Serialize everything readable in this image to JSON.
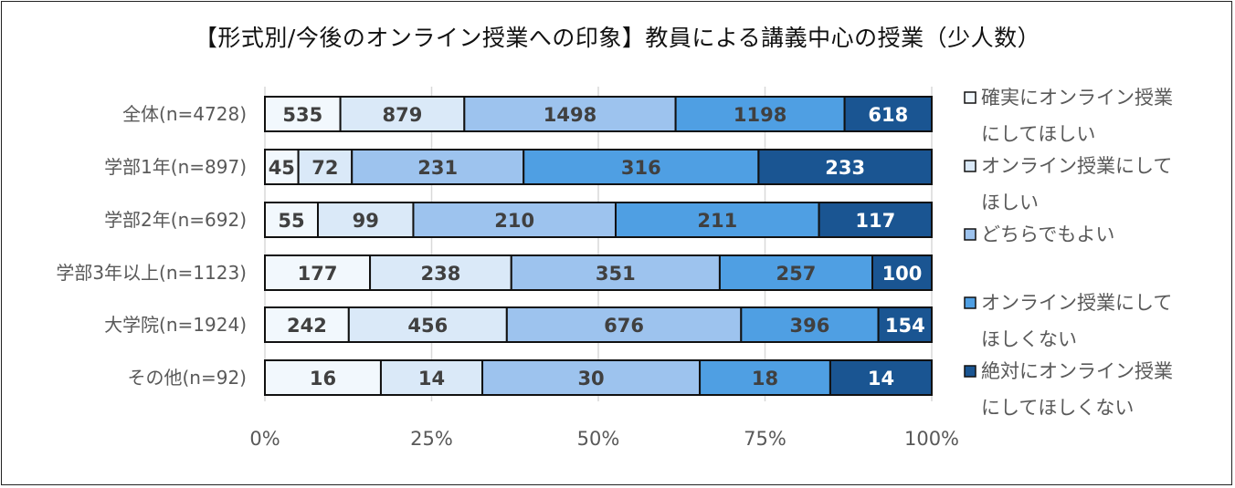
{
  "chart_data": {
    "type": "bar",
    "orientation": "horizontal",
    "stacked": "percent",
    "title": "【形式別/今後のオンライン授業への印象】教員による講義中心の授業（少人数）",
    "categories": [
      "全体(n=4728)",
      "学部1年(n=897)",
      "学部2年(n=692)",
      "学部3年以上(n=1123)",
      "大学院(n=1924)",
      "その他(n=92)"
    ],
    "series": [
      {
        "name": "確実にオンライン授業にしてほしい",
        "legend_lines": [
          "確実にオンライン授業",
          "にしてほしい"
        ],
        "color": "#F2F8FD",
        "values": [
          535,
          45,
          55,
          177,
          242,
          16
        ]
      },
      {
        "name": "オンライン授業にしてほしい",
        "legend_lines": [
          "オンライン授業にして",
          "ほしい"
        ],
        "color": "#DAE9F8",
        "values": [
          879,
          72,
          99,
          238,
          456,
          14
        ]
      },
      {
        "name": "どちらでもよい",
        "legend_lines": [
          "どちらでもよい"
        ],
        "color": "#9DC3EE",
        "values": [
          1498,
          231,
          210,
          351,
          676,
          30
        ]
      },
      {
        "name": "オンライン授業にしてほしくない",
        "legend_lines": [
          "オンライン授業にして",
          "ほしくない"
        ],
        "color": "#4F9FE3",
        "values": [
          1198,
          316,
          211,
          257,
          396,
          18
        ]
      },
      {
        "name": "絶対にオンライン授業にしてほしくない",
        "legend_lines": [
          "絶対にオンライン授業",
          "にしてほしくない"
        ],
        "color": "#1A5592",
        "values": [
          618,
          233,
          117,
          100,
          154,
          14
        ]
      }
    ],
    "x_ticks": [
      "0%",
      "25%",
      "50%",
      "75%",
      "100%"
    ],
    "xlim": [
      0,
      100
    ],
    "grid": true,
    "legend_position": "right"
  }
}
